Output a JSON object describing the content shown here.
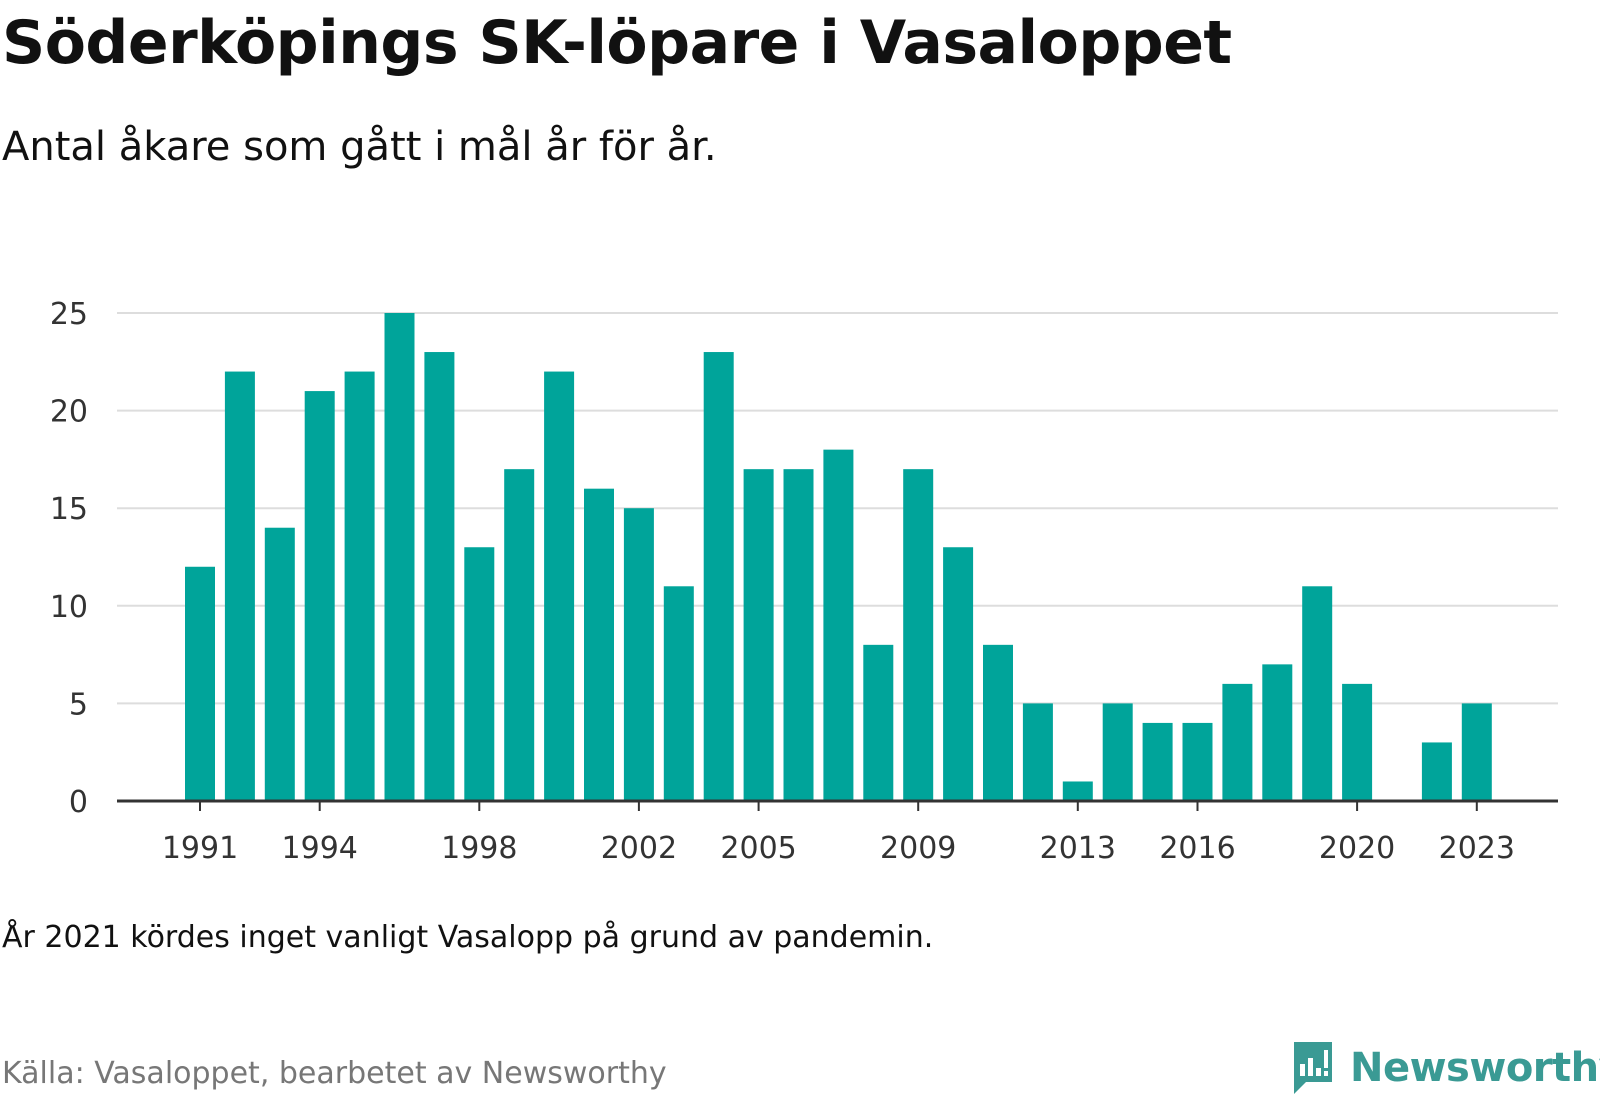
{
  "header": {
    "title": "Söderköpings SK-löpare i Vasaloppet",
    "subtitle": "Antal åkare som gått i mål år för år."
  },
  "footer": {
    "note": "År 2021 kördes inget vanligt Vasalopp på grund av pandemin.",
    "source": "Källa: Vasaloppet, bearbetet av Newsworthy",
    "logo_text": "Newsworthy",
    "logo_icon": "newsworthy-logo-icon"
  },
  "colors": {
    "bar": "#00a49a",
    "grid": "#dddddd",
    "axis": "#333333",
    "brand": "#3a9a94"
  },
  "chart_data": {
    "type": "bar",
    "categories": [
      "1991",
      "1992",
      "1993",
      "1994",
      "1995",
      "1996",
      "1997",
      "1998",
      "1999",
      "2000",
      "2001",
      "2002",
      "2003",
      "2004",
      "2005",
      "2006",
      "2007",
      "2008",
      "2009",
      "2010",
      "2011",
      "2012",
      "2013",
      "2014",
      "2015",
      "2016",
      "2017",
      "2018",
      "2019",
      "2020",
      "2021",
      "2022",
      "2023"
    ],
    "values": [
      12,
      22,
      14,
      21,
      22,
      25,
      23,
      13,
      17,
      22,
      16,
      15,
      11,
      23,
      17,
      17,
      18,
      8,
      17,
      13,
      8,
      5,
      1,
      5,
      4,
      4,
      6,
      7,
      11,
      6,
      0,
      3,
      5
    ],
    "x_tick_labels": [
      "1991",
      "1994",
      "1998",
      "2002",
      "2005",
      "2009",
      "2013",
      "2016",
      "2020",
      "2023"
    ],
    "y_ticks": [
      0,
      5,
      10,
      15,
      20,
      25
    ],
    "ylim": [
      0,
      25
    ],
    "grid": true,
    "xlabel": "",
    "ylabel": ""
  }
}
